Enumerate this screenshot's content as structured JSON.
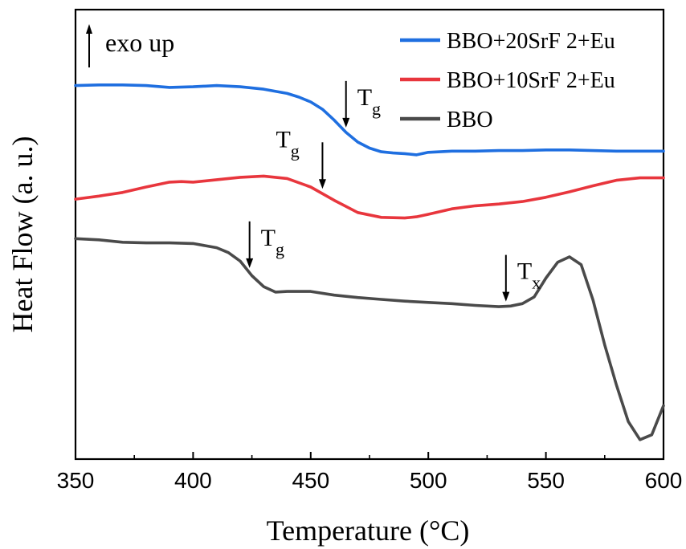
{
  "chart_data": {
    "type": "line",
    "title": "",
    "xlabel": "Temperature (°C)",
    "ylabel": "Heat Flow (a. u.)",
    "xlim": [
      350,
      600
    ],
    "ylim": [
      -1.0,
      6.4
    ],
    "y_ticks_shown": false,
    "x_ticks": [
      350,
      400,
      450,
      500,
      550,
      600
    ],
    "grid": false,
    "legend_position": "top-right",
    "annotation_text": "exo up",
    "series": [
      {
        "name": "BBO+20SrF 2+Eu",
        "color": "#1f6fe0",
        "x": [
          350,
          360,
          370,
          380,
          390,
          400,
          410,
          420,
          430,
          440,
          445,
          450,
          455,
          460,
          465,
          470,
          475,
          480,
          485,
          490,
          495,
          500,
          510,
          520,
          530,
          540,
          550,
          560,
          570,
          580,
          590,
          600
        ],
        "y": [
          5.15,
          5.16,
          5.16,
          5.15,
          5.12,
          5.13,
          5.15,
          5.13,
          5.09,
          5.02,
          4.96,
          4.88,
          4.76,
          4.58,
          4.38,
          4.22,
          4.12,
          4.06,
          4.04,
          4.03,
          4.01,
          4.05,
          4.07,
          4.07,
          4.08,
          4.08,
          4.09,
          4.09,
          4.08,
          4.07,
          4.07,
          4.07
        ]
      },
      {
        "name": "BBO+10SrF 2+Eu",
        "color": "#e8363d",
        "x": [
          350,
          360,
          370,
          380,
          390,
          395,
          400,
          410,
          420,
          430,
          440,
          450,
          460,
          470,
          480,
          490,
          495,
          500,
          510,
          520,
          530,
          540,
          550,
          560,
          570,
          580,
          590,
          600
        ],
        "y": [
          3.28,
          3.33,
          3.39,
          3.48,
          3.56,
          3.57,
          3.56,
          3.6,
          3.64,
          3.66,
          3.62,
          3.48,
          3.26,
          3.06,
          2.98,
          2.97,
          2.99,
          3.03,
          3.12,
          3.17,
          3.2,
          3.24,
          3.31,
          3.4,
          3.5,
          3.59,
          3.63,
          3.63
        ]
      },
      {
        "name": "BBO",
        "color": "#4a4a4a",
        "x": [
          350,
          360,
          370,
          380,
          390,
          400,
          410,
          415,
          420,
          425,
          430,
          435,
          440,
          450,
          460,
          470,
          480,
          490,
          500,
          510,
          520,
          530,
          535,
          540,
          545,
          550,
          555,
          560,
          565,
          570,
          575,
          580,
          585,
          590,
          595,
          600
        ],
        "y": [
          2.63,
          2.61,
          2.57,
          2.56,
          2.56,
          2.55,
          2.48,
          2.4,
          2.26,
          2.02,
          1.84,
          1.75,
          1.76,
          1.76,
          1.7,
          1.66,
          1.63,
          1.6,
          1.58,
          1.56,
          1.53,
          1.51,
          1.52,
          1.56,
          1.67,
          1.98,
          2.24,
          2.33,
          2.2,
          1.62,
          0.88,
          0.22,
          -0.38,
          -0.68,
          -0.6,
          -0.12
        ]
      }
    ],
    "annotations": [
      {
        "label": "T",
        "sub": "g",
        "series": "BBO+20SrF 2+Eu",
        "x": 465
      },
      {
        "label": "T",
        "sub": "g",
        "series": "BBO+10SrF 2+Eu",
        "x": 455
      },
      {
        "label": "T",
        "sub": "g",
        "series": "BBO",
        "x": 424
      },
      {
        "label": "T",
        "sub": "x",
        "series": "BBO",
        "x": 533
      }
    ]
  }
}
